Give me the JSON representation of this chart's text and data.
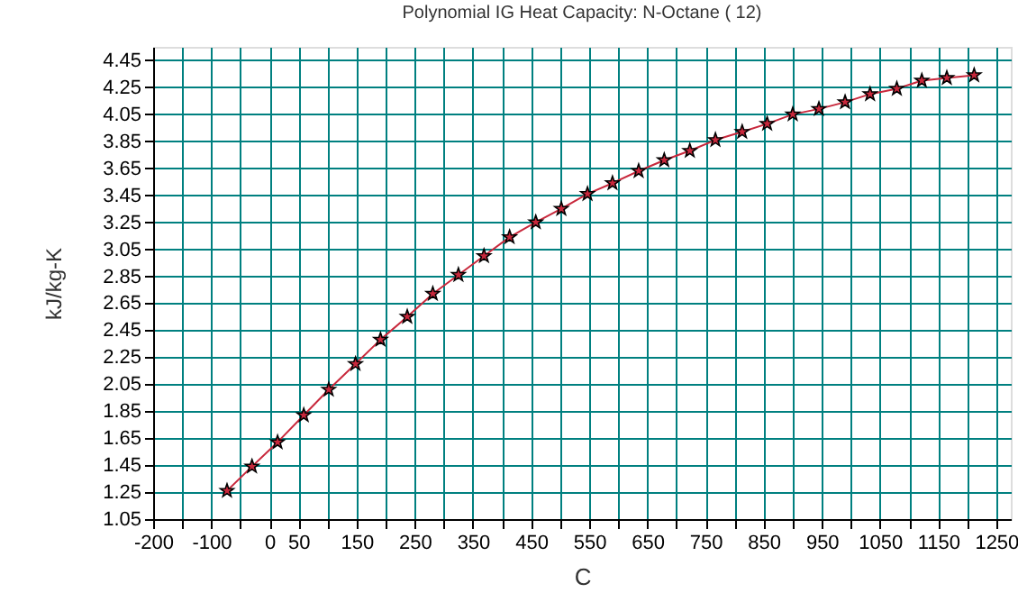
{
  "chart_data": {
    "type": "line",
    "title": "Polynomial IG Heat Capacity: N-Octane ( 12)",
    "xlabel": "C",
    "ylabel": "kJ/kg-K",
    "x": [
      -73,
      -30,
      14,
      59,
      102,
      148,
      191,
      237,
      281,
      325,
      369,
      413,
      458,
      502,
      547,
      590,
      635,
      679,
      723,
      767,
      813,
      856,
      900,
      945,
      990,
      1033,
      1079,
      1122,
      1165,
      1212
    ],
    "series": [
      {
        "color": "#c8283c",
        "values": [
          1.26,
          1.44,
          1.62,
          1.82,
          2.01,
          2.2,
          2.38,
          2.55,
          2.72,
          2.86,
          3.0,
          3.14,
          3.25,
          3.35,
          3.46,
          3.54,
          3.63,
          3.71,
          3.78,
          3.86,
          3.92,
          3.98,
          4.05,
          4.09,
          4.14,
          4.2,
          4.24,
          4.3,
          4.32,
          4.34
        ]
      }
    ],
    "xlim": [
      -200,
      1275
    ],
    "ylim": [
      1.05,
      4.55
    ],
    "xticks": [
      -200,
      {
        "value": -150,
        "label": null
      },
      -100,
      {
        "value": -50,
        "label": null
      },
      0,
      50,
      {
        "value": 100,
        "label": null
      },
      150,
      {
        "value": 200,
        "label": null
      },
      250,
      {
        "value": 300,
        "label": null
      },
      350,
      {
        "value": 400,
        "label": null
      },
      450,
      {
        "value": 500,
        "label": null
      },
      550,
      {
        "value": 600,
        "label": null
      },
      650,
      {
        "value": 700,
        "label": null
      },
      750,
      {
        "value": 800,
        "label": null
      },
      850,
      {
        "value": 900,
        "label": null
      },
      950,
      {
        "value": 1000,
        "label": null
      },
      1050,
      {
        "value": 1100,
        "label": null
      },
      1150,
      {
        "value": 1200,
        "label": null
      },
      1250
    ],
    "yticks": [
      1.05,
      1.25,
      1.45,
      1.65,
      1.85,
      2.05,
      2.25,
      2.45,
      2.65,
      2.85,
      3.05,
      3.25,
      3.45,
      3.65,
      3.85,
      4.05,
      4.25,
      4.45
    ],
    "grid": true,
    "marker": "star",
    "line_style": "solid"
  }
}
